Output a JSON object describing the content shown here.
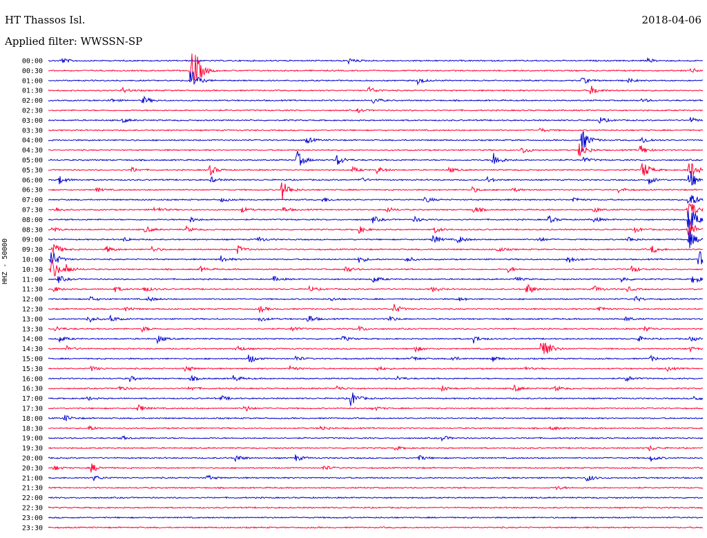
{
  "header": {
    "station": "HT Thassos Isl.",
    "date": "2018-04-06",
    "filter": "Applied filter: WWSSN-SP"
  },
  "colors": {
    "odd": "#0000cc",
    "even": "#ff0033"
  },
  "chart_data": {
    "type": "line",
    "ylabel": "HHZ - 50000",
    "rows": [
      {
        "label": "00:00",
        "color": "blue",
        "events": [
          [
            88,
            5
          ],
          [
            505,
            4
          ],
          [
            938,
            3
          ]
        ]
      },
      {
        "label": "00:30",
        "color": "red",
        "events": [
          [
            276,
            34
          ],
          [
            283,
            14
          ],
          [
            1000,
            4
          ]
        ]
      },
      {
        "label": "01:00",
        "color": "blue",
        "events": [
          [
            276,
            18
          ],
          [
            604,
            6
          ],
          [
            843,
            5
          ],
          [
            910,
            3
          ]
        ]
      },
      {
        "label": "01:30",
        "color": "red",
        "events": [
          [
            178,
            4
          ],
          [
            534,
            6
          ],
          [
            855,
            8
          ]
        ]
      },
      {
        "label": "02:00",
        "color": "blue",
        "events": [
          [
            158,
            3
          ],
          [
            207,
            6
          ],
          [
            540,
            5
          ],
          [
            930,
            3
          ]
        ]
      },
      {
        "label": "02:30",
        "color": "red",
        "events": [
          [
            518,
            3
          ]
        ]
      },
      {
        "label": "03:00",
        "color": "blue",
        "events": [
          [
            178,
            3
          ],
          [
            868,
            5
          ],
          [
            1000,
            4
          ]
        ]
      },
      {
        "label": "03:30",
        "color": "red",
        "events": [
          [
            782,
            3
          ]
        ]
      },
      {
        "label": "04:00",
        "color": "blue",
        "events": [
          [
            444,
            5
          ],
          [
            843,
            18
          ],
          [
            930,
            6
          ]
        ]
      },
      {
        "label": "04:30",
        "color": "red",
        "events": [
          [
            36,
            3
          ],
          [
            756,
            6
          ],
          [
            839,
            14
          ],
          [
            927,
            8
          ]
        ]
      },
      {
        "label": "05:00",
        "color": "blue",
        "events": [
          [
            430,
            14
          ],
          [
            488,
            9
          ],
          [
            713,
            14
          ],
          [
            845,
            4
          ]
        ]
      },
      {
        "label": "05:30",
        "color": "red",
        "events": [
          [
            190,
            4
          ],
          [
            304,
            8
          ],
          [
            511,
            4
          ],
          [
            546,
            5
          ],
          [
            650,
            4
          ],
          [
            930,
            16
          ],
          [
            997,
            20
          ]
        ]
      },
      {
        "label": "06:00",
        "color": "blue",
        "events": [
          [
            86,
            6
          ],
          [
            306,
            4
          ],
          [
            520,
            4
          ],
          [
            706,
            4
          ],
          [
            940,
            6
          ],
          [
            998,
            18
          ]
        ]
      },
      {
        "label": "06:30",
        "color": "red",
        "events": [
          [
            140,
            3
          ],
          [
            408,
            16
          ],
          [
            684,
            4
          ],
          [
            743,
            3
          ],
          [
            896,
            4
          ]
        ]
      },
      {
        "label": "07:00",
        "color": "blue",
        "events": [
          [
            320,
            3
          ],
          [
            468,
            4
          ],
          [
            616,
            5
          ],
          [
            830,
            4
          ],
          [
            997,
            16
          ]
        ]
      },
      {
        "label": "07:30",
        "color": "red",
        "events": [
          [
            80,
            4
          ],
          [
            224,
            5
          ],
          [
            350,
            4
          ],
          [
            410,
            4
          ],
          [
            560,
            4
          ],
          [
            686,
            5
          ],
          [
            860,
            4
          ],
          [
            996,
            22
          ]
        ]
      },
      {
        "label": "08:00",
        "color": "blue",
        "events": [
          [
            276,
            4
          ],
          [
            540,
            5
          ],
          [
            600,
            4
          ],
          [
            794,
            6
          ],
          [
            860,
            4
          ],
          [
            997,
            30
          ]
        ]
      },
      {
        "label": "08:30",
        "color": "red",
        "events": [
          [
            76,
            4
          ],
          [
            210,
            5
          ],
          [
            270,
            4
          ],
          [
            520,
            5
          ],
          [
            630,
            5
          ],
          [
            920,
            4
          ],
          [
            996,
            20
          ]
        ]
      },
      {
        "label": "09:00",
        "color": "blue",
        "events": [
          [
            180,
            3
          ],
          [
            374,
            4
          ],
          [
            626,
            8
          ],
          [
            663,
            6
          ],
          [
            780,
            4
          ],
          [
            908,
            5
          ],
          [
            998,
            14
          ]
        ]
      },
      {
        "label": "09:30",
        "color": "red",
        "events": [
          [
            76,
            12
          ],
          [
            154,
            5
          ],
          [
            220,
            4
          ],
          [
            344,
            6
          ],
          [
            720,
            4
          ],
          [
            944,
            6
          ]
        ]
      },
      {
        "label": "10:00",
        "color": "blue",
        "events": [
          [
            74,
            16
          ],
          [
            320,
            5
          ],
          [
            520,
            5
          ],
          [
            588,
            5
          ],
          [
            822,
            6
          ],
          [
            1012,
            14
          ]
        ]
      },
      {
        "label": "10:30",
        "color": "red",
        "events": [
          [
            74,
            20
          ],
          [
            96,
            6
          ],
          [
            290,
            4
          ],
          [
            500,
            5
          ],
          [
            736,
            4
          ],
          [
            914,
            6
          ]
        ]
      },
      {
        "label": "11:00",
        "color": "blue",
        "events": [
          [
            84,
            6
          ],
          [
            396,
            4
          ],
          [
            540,
            6
          ],
          [
            746,
            4
          ],
          [
            900,
            4
          ],
          [
            1003,
            8
          ]
        ]
      },
      {
        "label": "11:30",
        "color": "red",
        "events": [
          [
            78,
            4
          ],
          [
            166,
            4
          ],
          [
            208,
            5
          ],
          [
            448,
            4
          ],
          [
            626,
            4
          ],
          [
            762,
            10
          ],
          [
            860,
            5
          ],
          [
            908,
            4
          ]
        ]
      },
      {
        "label": "12:00",
        "color": "blue",
        "events": [
          [
            130,
            4
          ],
          [
            214,
            4
          ],
          [
            478,
            3
          ],
          [
            664,
            3
          ],
          [
            920,
            4
          ]
        ]
      },
      {
        "label": "12:30",
        "color": "red",
        "events": [
          [
            182,
            4
          ],
          [
            376,
            5
          ],
          [
            570,
            8
          ],
          [
            866,
            5
          ]
        ]
      },
      {
        "label": "13:00",
        "color": "blue",
        "events": [
          [
            127,
            6
          ],
          [
            160,
            5
          ],
          [
            376,
            4
          ],
          [
            446,
            7
          ],
          [
            564,
            4
          ],
          [
            906,
            4
          ]
        ]
      },
      {
        "label": "13:30",
        "color": "red",
        "events": [
          [
            80,
            4
          ],
          [
            206,
            4
          ],
          [
            422,
            4
          ],
          [
            520,
            4
          ],
          [
            934,
            4
          ]
        ]
      },
      {
        "label": "14:00",
        "color": "blue",
        "events": [
          [
            86,
            5
          ],
          [
            228,
            6
          ],
          [
            496,
            4
          ],
          [
            686,
            6
          ],
          [
            924,
            4
          ],
          [
            1000,
            4
          ]
        ]
      },
      {
        "label": "14:30",
        "color": "red",
        "events": [
          [
            96,
            4
          ],
          [
            342,
            5
          ],
          [
            600,
            5
          ],
          [
            784,
            30
          ],
          [
            998,
            4
          ]
        ]
      },
      {
        "label": "15:00",
        "color": "blue",
        "events": [
          [
            360,
            8
          ],
          [
            428,
            4
          ],
          [
            596,
            4
          ],
          [
            652,
            5
          ],
          [
            712,
            5
          ],
          [
            942,
            4
          ]
        ]
      },
      {
        "label": "15:30",
        "color": "red",
        "events": [
          [
            132,
            4
          ],
          [
            268,
            5
          ],
          [
            420,
            4
          ],
          [
            546,
            4
          ],
          [
            756,
            4
          ],
          [
            964,
            4
          ]
        ]
      },
      {
        "label": "16:00",
        "color": "blue",
        "events": [
          [
            188,
            4
          ],
          [
            276,
            4
          ],
          [
            338,
            5
          ],
          [
            574,
            4
          ],
          [
            906,
            5
          ]
        ]
      },
      {
        "label": "16:30",
        "color": "red",
        "events": [
          [
            172,
            4
          ],
          [
            274,
            4
          ],
          [
            488,
            4
          ],
          [
            640,
            4
          ],
          [
            744,
            5
          ],
          [
            804,
            4
          ]
        ]
      },
      {
        "label": "17:00",
        "color": "blue",
        "events": [
          [
            126,
            3
          ],
          [
            320,
            4
          ],
          [
            508,
            12
          ],
          [
            1005,
            4
          ]
        ]
      },
      {
        "label": "17:30",
        "color": "red",
        "events": [
          [
            200,
            6
          ],
          [
            354,
            5
          ],
          [
            540,
            4
          ]
        ]
      },
      {
        "label": "18:00",
        "color": "blue",
        "events": [
          [
            93,
            5
          ]
        ]
      },
      {
        "label": "18:30",
        "color": "red",
        "events": [
          [
            128,
            4
          ],
          [
            464,
            4
          ],
          [
            798,
            3
          ]
        ]
      },
      {
        "label": "19:00",
        "color": "blue",
        "events": [
          [
            176,
            3
          ],
          [
            640,
            4
          ]
        ]
      },
      {
        "label": "19:30",
        "color": "red",
        "events": [
          [
            572,
            3
          ],
          [
            940,
            4
          ]
        ]
      },
      {
        "label": "20:00",
        "color": "blue",
        "events": [
          [
            340,
            6
          ],
          [
            428,
            5
          ],
          [
            606,
            4
          ],
          [
            942,
            5
          ]
        ]
      },
      {
        "label": "20:30",
        "color": "red",
        "events": [
          [
            78,
            4
          ],
          [
            132,
            7
          ],
          [
            468,
            4
          ]
        ]
      },
      {
        "label": "21:00",
        "color": "blue",
        "events": [
          [
            136,
            4
          ],
          [
            300,
            4
          ],
          [
            850,
            6
          ]
        ]
      },
      {
        "label": "21:30",
        "color": "red",
        "events": [
          [
            806,
            3
          ]
        ]
      },
      {
        "label": "22:00",
        "color": "blue",
        "events": []
      },
      {
        "label": "22:30",
        "color": "red",
        "events": []
      },
      {
        "label": "23:00",
        "color": "blue",
        "events": []
      },
      {
        "label": "23:30",
        "color": "red",
        "events": []
      }
    ]
  }
}
